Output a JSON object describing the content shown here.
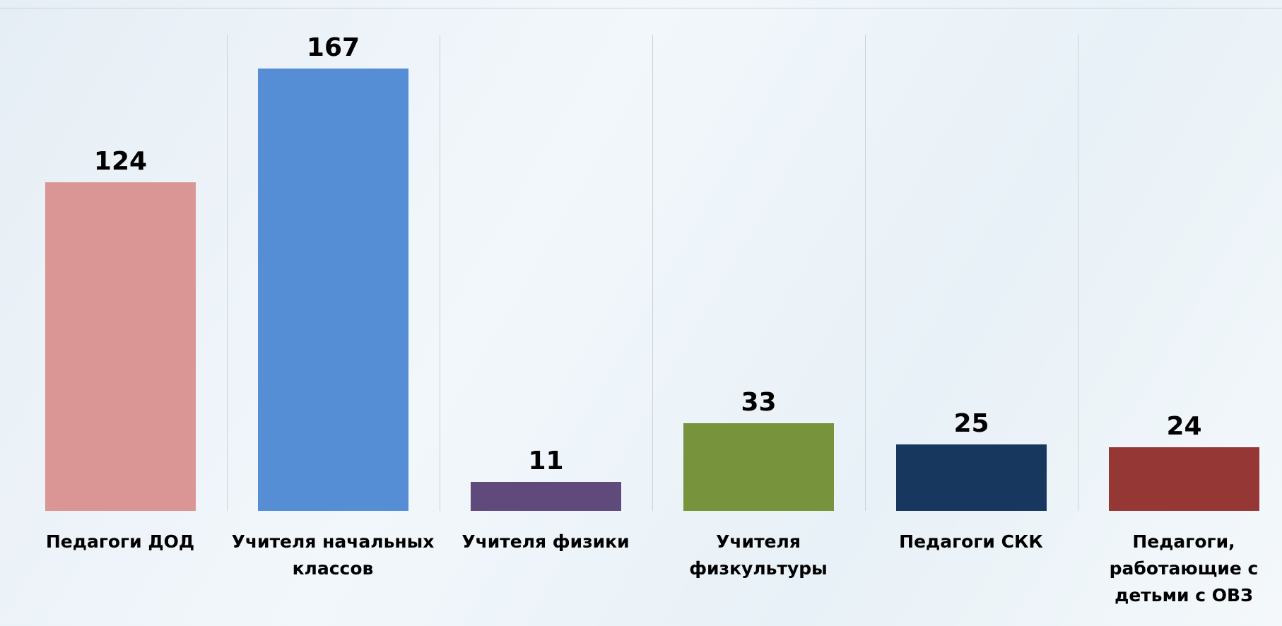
{
  "chart_data": {
    "type": "bar",
    "categories": [
      "Педагоги ДОД",
      "Учителя начальных классов",
      "Учителя физики",
      "Учителя физкультуры",
      "Педагоги СКК",
      "Педагоги, работающие с детьми с ОВЗ"
    ],
    "values": [
      124,
      167,
      11,
      33,
      25,
      24
    ],
    "colors": [
      "#d99694",
      "#558ed5",
      "#604a7b",
      "#77933c",
      "#17375e",
      "#953735"
    ]
  }
}
